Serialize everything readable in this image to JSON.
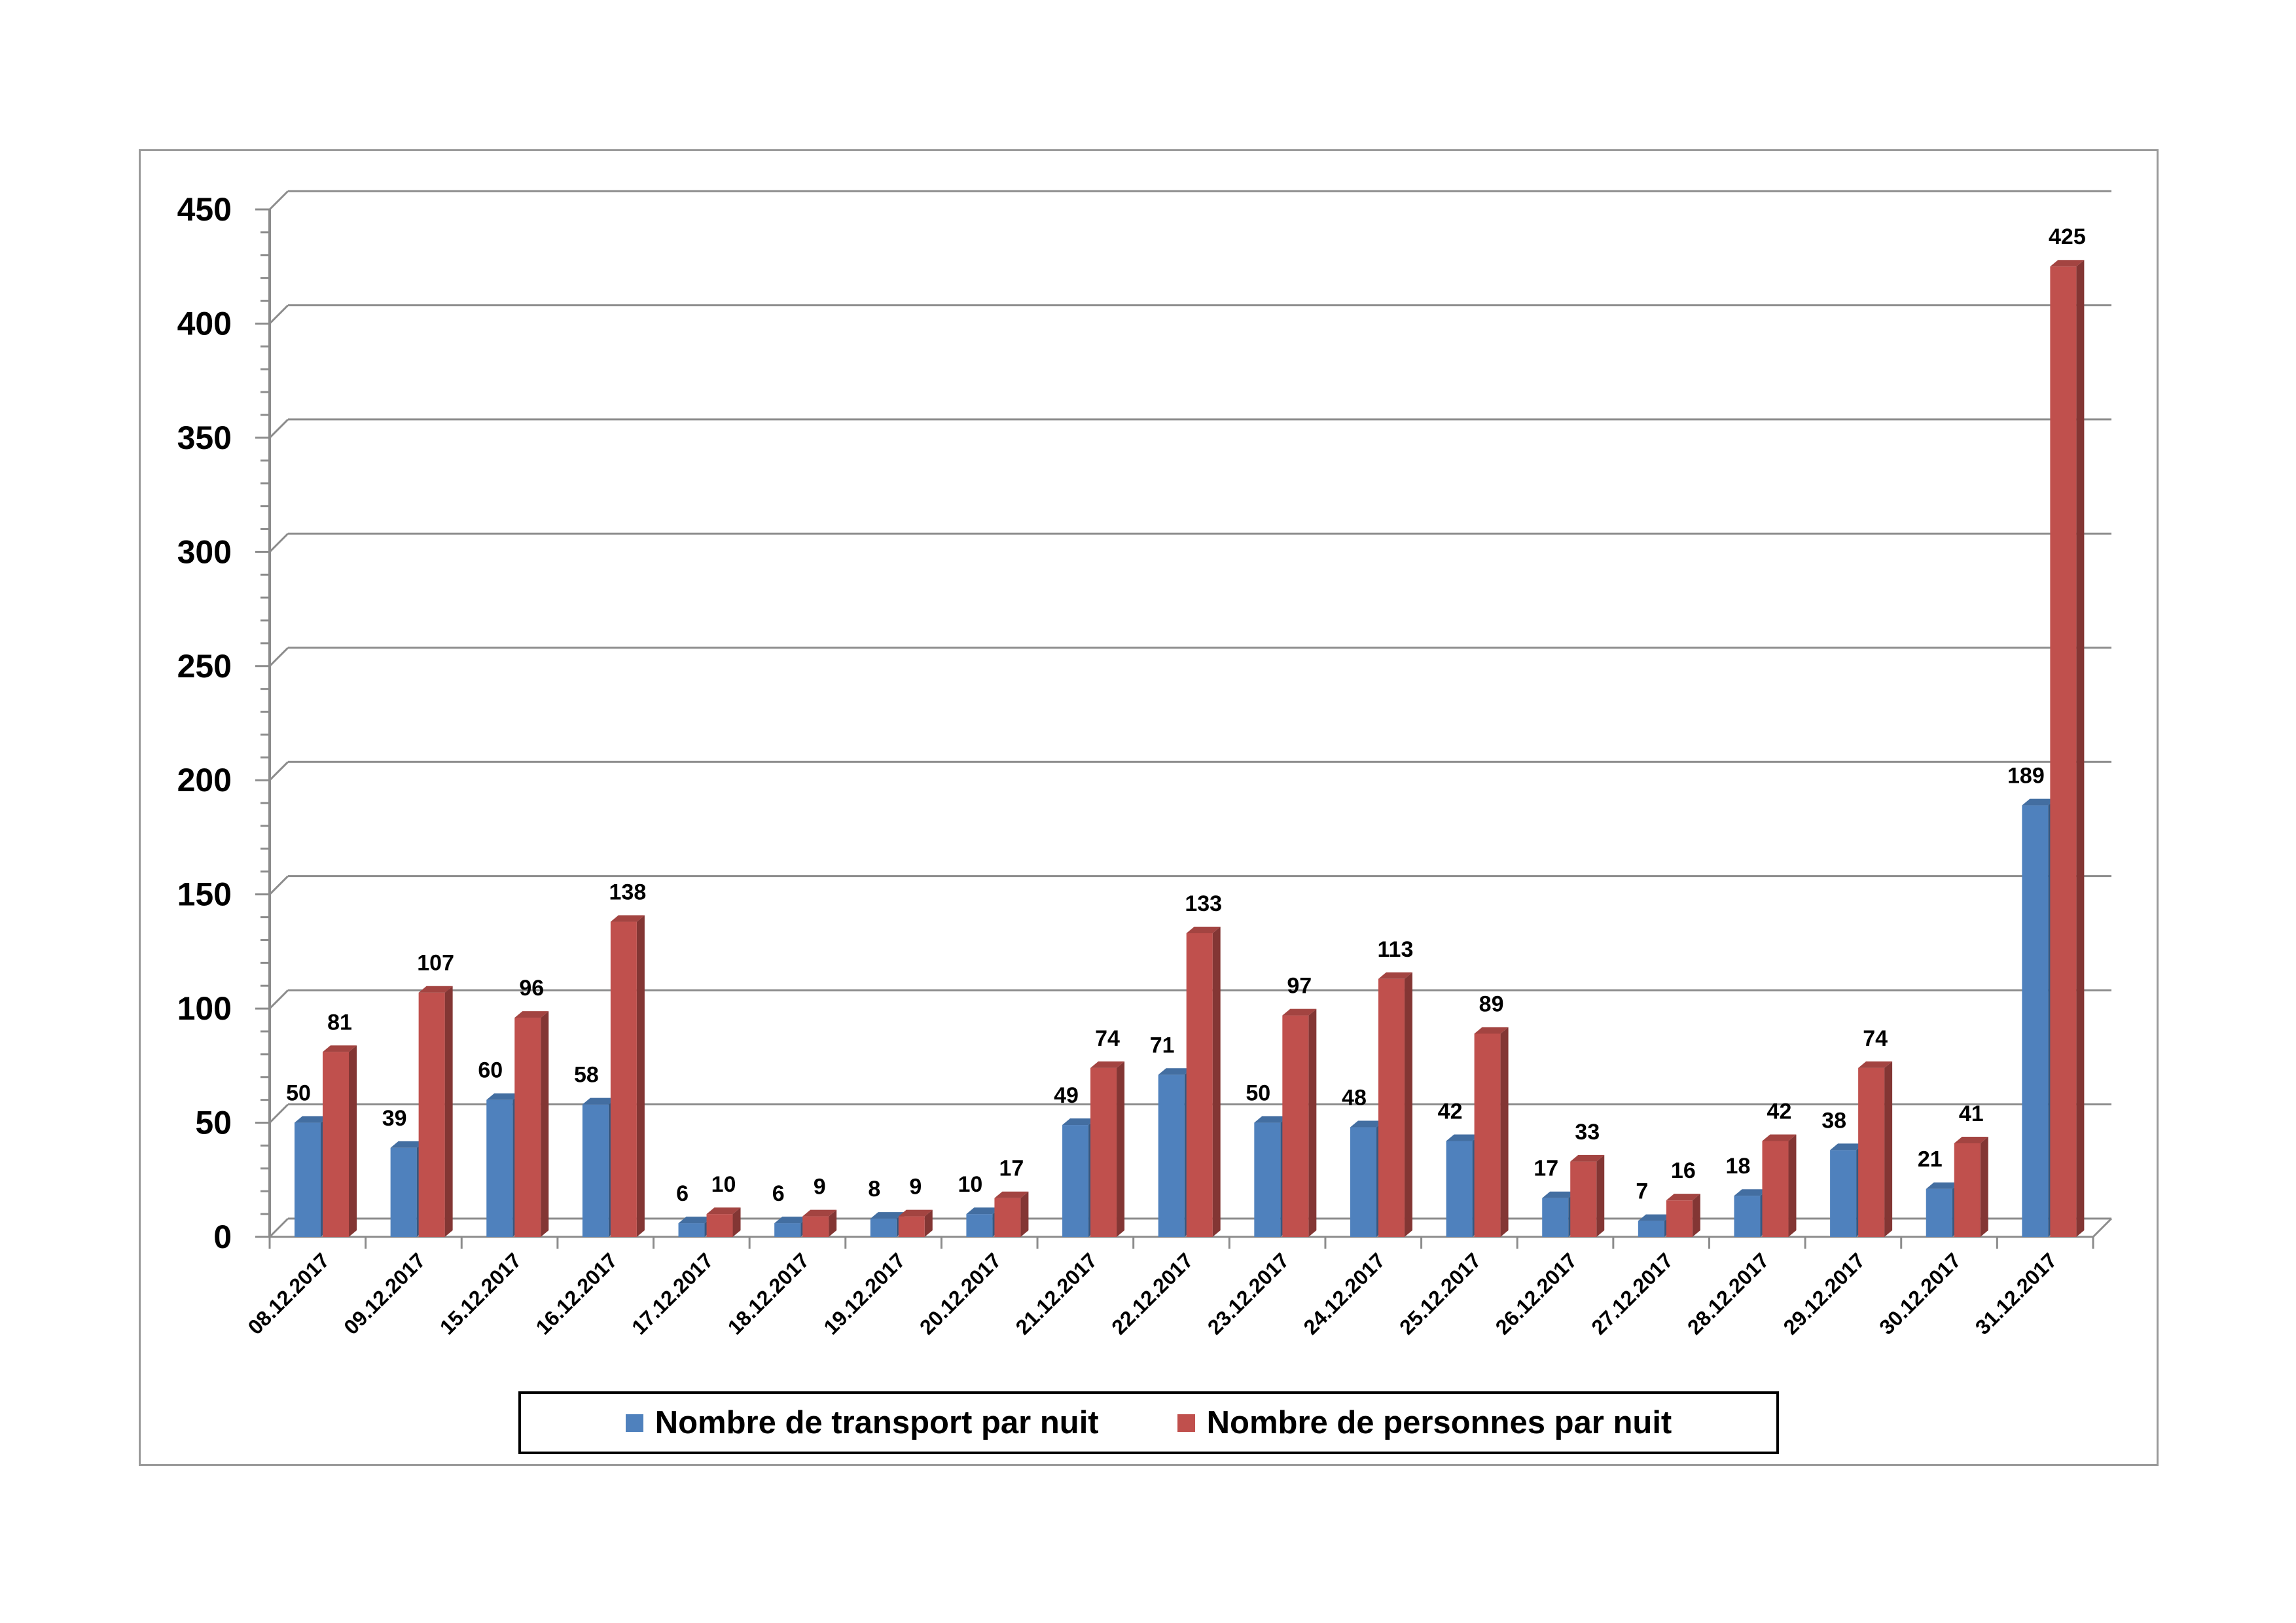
{
  "colors": {
    "series_1": "#4f81bd",
    "series_2": "#c0504d"
  },
  "chart_data": {
    "type": "bar",
    "style": "3d-clustered-column",
    "title": "",
    "xlabel": "",
    "ylabel": "",
    "ylim": [
      0,
      450
    ],
    "y_ticks": [
      0,
      50,
      100,
      150,
      200,
      250,
      300,
      350,
      400,
      450
    ],
    "grid": true,
    "legend_position": "bottom",
    "data_labels": true,
    "categories": [
      "08.12.2017",
      "09.12.2017",
      "15.12.2017",
      "16.12.2017",
      "17.12.2017",
      "18.12.2017",
      "19.12.2017",
      "20.12.2017",
      "21.12.2017",
      "22.12.2017",
      "23.12.2017",
      "24.12.2017",
      "25.12.2017",
      "26.12.2017",
      "27.12.2017",
      "28.12.2017",
      "29.12.2017",
      "30.12.2017",
      "31.12.2017"
    ],
    "series": [
      {
        "name": "Nombre de transport par nuit",
        "color": "#4f81bd",
        "values": [
          50,
          39,
          60,
          58,
          6,
          6,
          8,
          10,
          49,
          71,
          50,
          48,
          42,
          17,
          7,
          18,
          38,
          21,
          189
        ]
      },
      {
        "name": "Nombre de personnes par nuit",
        "color": "#c0504d",
        "values": [
          81,
          107,
          96,
          138,
          10,
          9,
          9,
          17,
          74,
          133,
          97,
          113,
          89,
          33,
          16,
          42,
          74,
          41,
          425
        ]
      }
    ]
  }
}
